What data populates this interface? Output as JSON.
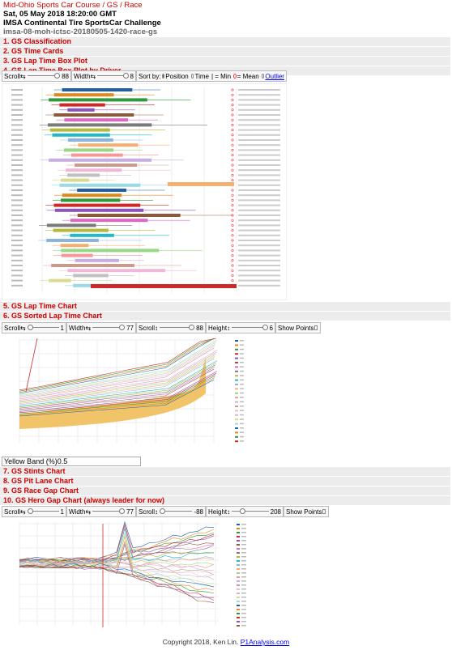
{
  "header": {
    "title": "Mid-Ohio Sports Car Course / GS / Race",
    "datetime": "Sat, 05 May 2018 18:20:00 GMT",
    "series": "IMSA Continental Tire SportsCar Challenge",
    "file": "imsa-08-moh-ictsc-20180505-1420-race-gs"
  },
  "sections": {
    "s1": "1. GS Classification",
    "s2": "2. GS Time Cards",
    "s3": "3. GS Lap Time Box Plot",
    "s4": "4. GS Lap Time Box Plot by Driver",
    "s5": "5. GS Lap Time Chart",
    "s6": "6. GS Sorted Lap Time Chart",
    "s7": "7. GS Stints Chart",
    "s8": "8. GS Pit Lane Chart",
    "s9": "9. GS Race Gap Chart",
    "s10": "10. GS Hero Gap Chart (always leader for now)"
  },
  "boxplot_controls": {
    "scroll_label": "Scroll",
    "scroll_value": "88",
    "width_label": "Width",
    "width_value": "8",
    "sort_label": "Sort by:",
    "position_label": "Position",
    "time_label": "Time",
    "min_label": "| = Min",
    "mean_label": "= Mean",
    "outlier_label": "Outlier"
  },
  "sorted_controls": {
    "scroll_label": "Scroll",
    "scroll_value": "1",
    "width_label": "Width",
    "width_value": "77",
    "vscroll_label": "Scroll",
    "vscroll_value": "88",
    "height_label": "Height",
    "height_value": "6",
    "show_points_label": "Show Points"
  },
  "yellow_band": {
    "label": "Yellow Band (%)",
    "value": "0.5"
  },
  "hero_controls": {
    "scroll_label": "Scroll",
    "scroll_value": "1",
    "width_label": "Width",
    "width_value": "77",
    "vscroll_label": "Scroll",
    "vscroll_value": "-88",
    "height_label": "Height",
    "height_value": "208",
    "show_points_label": "Show Points"
  },
  "footer": {
    "copyright": "Copyright 2018, Ken Lin.",
    "site": "P1Analysis.com"
  },
  "colors": {
    "section_text": "#cc0000",
    "section_bg": "#ececec",
    "link": "#0000ee"
  },
  "icons": {
    "horizontal_arrows": "⇆",
    "vertical_arrows": "↕"
  }
}
